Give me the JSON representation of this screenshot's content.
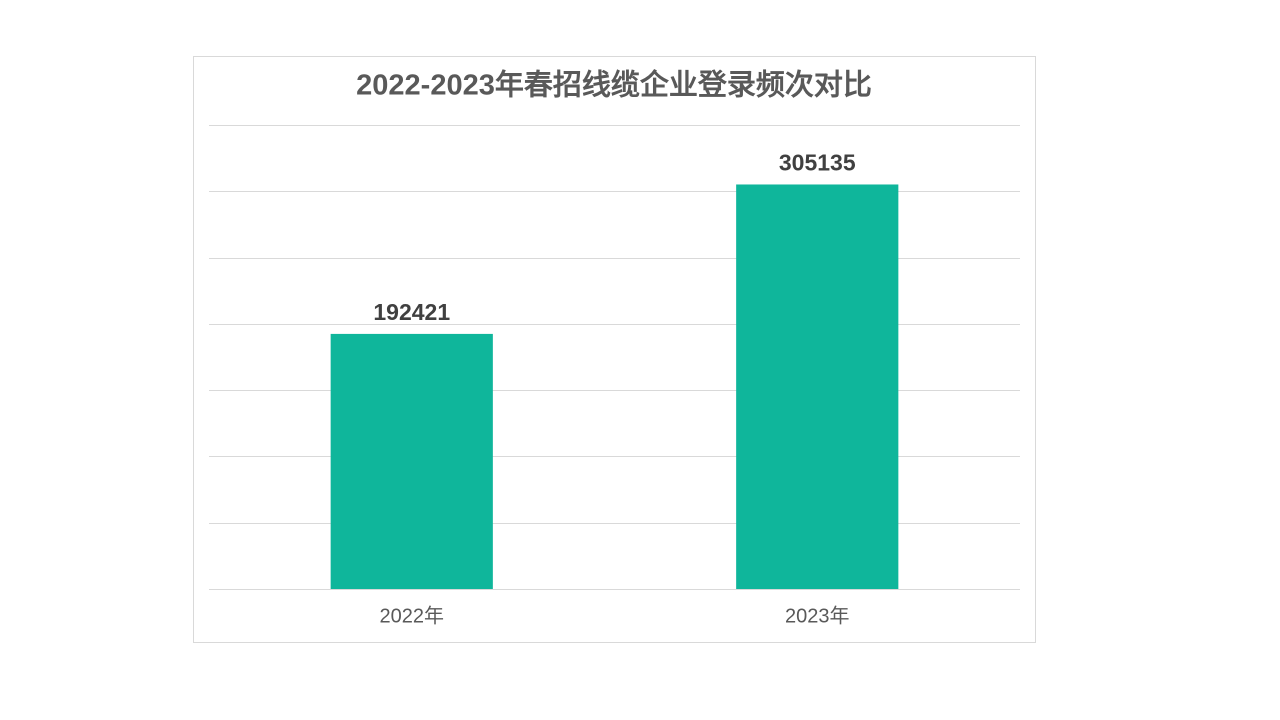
{
  "chart_data": {
    "type": "bar",
    "title": "2022-2023年春招线缆企业登录频次对比",
    "categories": [
      "2022年",
      "2023年"
    ],
    "values": [
      192421,
      305135
    ],
    "color": "#0fb69b",
    "ylim": [
      0,
      350000
    ],
    "yticks": [
      0,
      50000,
      100000,
      150000,
      200000,
      250000,
      300000,
      350000
    ],
    "grid": true
  }
}
